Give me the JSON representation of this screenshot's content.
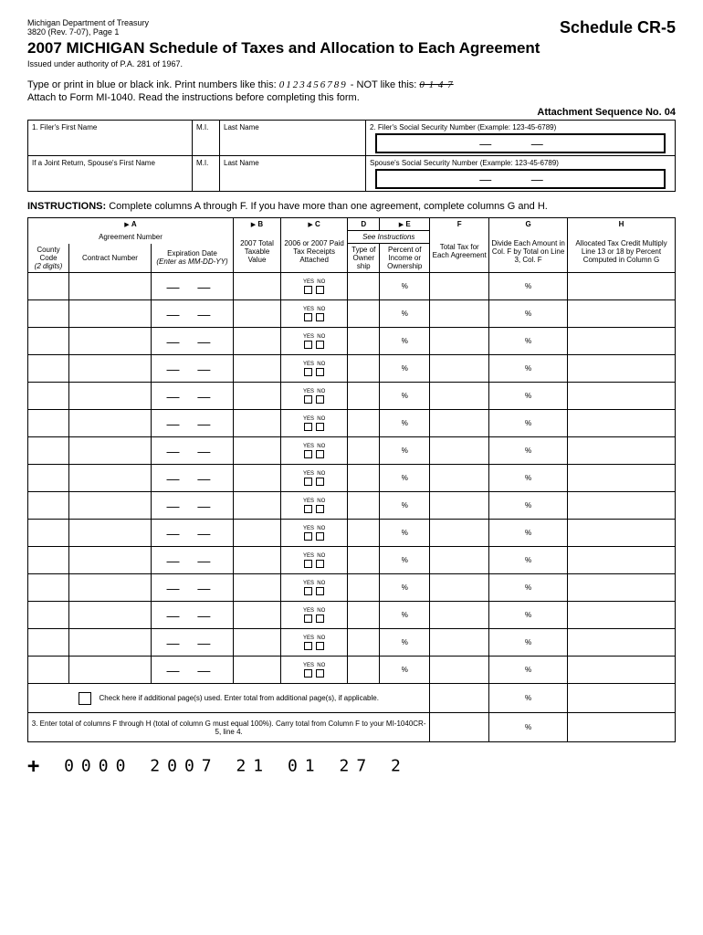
{
  "header": {
    "dept": "Michigan Department of Treasury",
    "form_rev": "3820 (Rev. 7-07), Page 1",
    "schedule": "Schedule CR-5",
    "title": "2007 MICHIGAN Schedule of Taxes and Allocation to Each Agreement",
    "authority": "Issued under authority of P.A. 281 of 1967."
  },
  "instructions": {
    "line1_a": "Type or print in blue or black ink.  Print numbers like this:  ",
    "example_good": "0123456789",
    "line1_b": " - NOT like this:  ",
    "example_bad": "0 1 4 7",
    "line2": "Attach to Form MI-1040.  Read the instructions before completing this form.",
    "attach_seq": "Attachment Sequence No. 04"
  },
  "filer": {
    "row1": {
      "first": "1.  Filer's First Name",
      "mi": "M.I.",
      "last": "Last Name",
      "ssn_label": "2.  Filer's Social Security Number (Example: 123-45-6789)"
    },
    "row2": {
      "first": "If a Joint Return, Spouse's First Name",
      "mi": "M.I.",
      "last": "Last Name",
      "ssn_label": "Spouse's Social Security Number (Example: 123-45-6789)"
    },
    "ssn_dashes": "—       —"
  },
  "section_instr": "Complete columns A through F.  If you have more than one agreement, complete columns G and H.",
  "columns": {
    "A": "A",
    "B": "B",
    "C": "C",
    "D": "D",
    "E": "E",
    "F": "F",
    "G": "G",
    "H": "H",
    "agreement_number": "Agreement Number",
    "county_code": "County Code",
    "county_digits": "(2 digits)",
    "contract_number": "Contract  Number",
    "expiration": "Expiration Date",
    "expiration_fmt": "(Enter as MM-DD-YY)",
    "b_desc": "2007 Total Taxable Value",
    "c_desc": "2006 or 2007 Paid Tax Receipts Attached",
    "d_desc": "Type of Owner ship",
    "e_desc": "Percent of Income or Ownership",
    "see_instr": "See Instructions",
    "f_desc": "Total Tax for Each Agreement",
    "g_desc": "Divide Each Amount in Col. F by Total on Line 3, Col. F",
    "h_desc": "Allocated Tax Credit Multiply Line 13 or 18 by Percent Computed in Column G",
    "yes": "YES",
    "no": "NO"
  },
  "rows": {
    "count": 15,
    "dash": "—    —",
    "pct": "%"
  },
  "footer": {
    "check_text": "Check here if additional page(s) used.  Enter total from additional page(s), if applicable.",
    "line3_num": "3.",
    "line3_text": "Enter total of columns F through H (total of column G must equal 100%).  Carry total from Column F to your MI-1040CR-5, line 4."
  },
  "barcode": "0000 2007 21 01 27 2"
}
